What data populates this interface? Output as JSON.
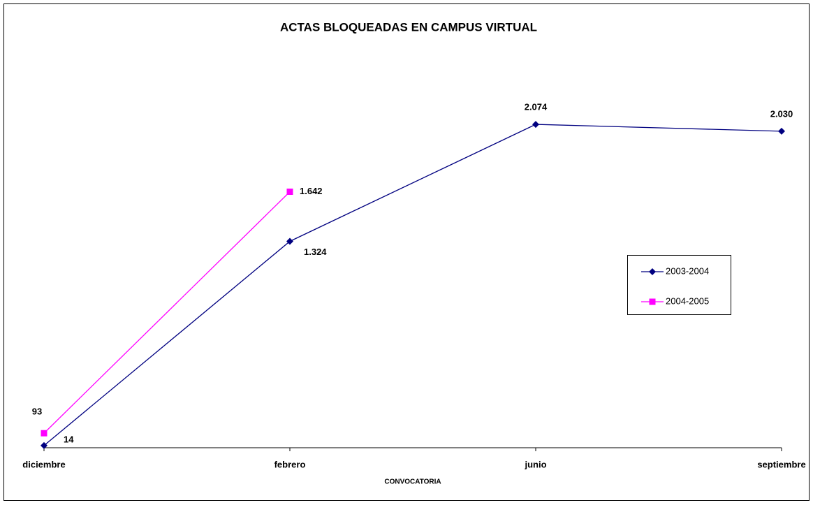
{
  "chart_data": {
    "type": "line",
    "title": "ACTAS BLOQUEADAS EN  CAMPUS VIRTUAL",
    "x_label": "CONVOCATORIA",
    "categories": [
      "diciembre",
      "febrero",
      "junio",
      "septiembre"
    ],
    "series": [
      {
        "name": "2003-2004",
        "color": "#000080",
        "marker": "diamond",
        "values": [
          14,
          1324,
          2074,
          2030
        ],
        "value_labels": [
          "14",
          "1.324",
          "2.074",
          "2.030"
        ]
      },
      {
        "name": "2004-2005",
        "color": "#ff00ff",
        "marker": "square",
        "values": [
          93,
          1642,
          null,
          null
        ],
        "value_labels": [
          "93",
          "1.642",
          null,
          null
        ]
      }
    ],
    "ylim": [
      0,
      2500
    ],
    "legend": "right"
  }
}
